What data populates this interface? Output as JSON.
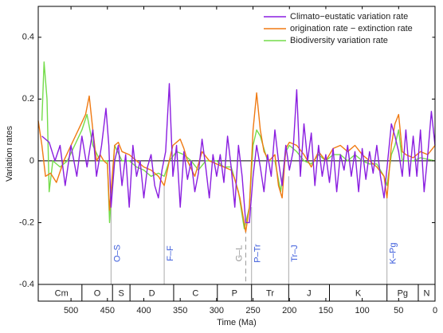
{
  "chart_data": {
    "type": "line",
    "x_label": "Time (Ma)",
    "y_label": "Variation rates",
    "xlim": [
      545,
      0
    ],
    "ylim": [
      -0.4,
      0.5
    ],
    "xticks": [
      500,
      450,
      400,
      350,
      300,
      250,
      200,
      150,
      100,
      50,
      0
    ],
    "yticks": [
      -0.4,
      -0.2,
      0,
      0.2,
      0.4
    ],
    "legend": "upper right",
    "series": [
      {
        "name": "Climato−eustatic variation rate",
        "color": "#8a1ee0",
        "x": [
          540,
          530,
          522,
          515,
          508,
          500,
          492,
          485,
          478,
          470,
          465,
          458,
          452,
          448,
          445,
          440,
          435,
          430,
          425,
          420,
          415,
          410,
          405,
          400,
          395,
          390,
          385,
          380,
          375,
          370,
          365,
          360,
          355,
          350,
          345,
          340,
          335,
          330,
          325,
          320,
          315,
          310,
          305,
          300,
          295,
          290,
          285,
          280,
          275,
          270,
          265,
          260,
          255,
          250,
          245,
          240,
          235,
          230,
          225,
          220,
          215,
          210,
          205,
          200,
          195,
          190,
          185,
          180,
          175,
          170,
          165,
          160,
          155,
          150,
          145,
          140,
          135,
          130,
          125,
          120,
          115,
          110,
          105,
          100,
          95,
          90,
          85,
          80,
          75,
          70,
          65,
          60,
          55,
          50,
          45,
          40,
          35,
          30,
          25,
          20,
          15,
          10,
          5,
          0
        ],
        "values": [
          0.08,
          0.06,
          0.0,
          0.05,
          -0.08,
          0.05,
          -0.05,
          0.08,
          -0.02,
          0.1,
          -0.05,
          0.05,
          0.17,
          0.05,
          -0.15,
          0.0,
          0.05,
          -0.08,
          0.02,
          -0.15,
          0.05,
          -0.05,
          0.0,
          -0.12,
          -0.02,
          0.02,
          -0.08,
          -0.12,
          -0.03,
          0.03,
          0.25,
          -0.05,
          0.05,
          -0.15,
          0.03,
          -0.06,
          0.0,
          -0.1,
          -0.04,
          0.07,
          -0.02,
          -0.12,
          0.02,
          -0.05,
          0.02,
          -0.07,
          0.08,
          -0.02,
          -0.15,
          0.05,
          -0.05,
          -0.2,
          -0.2,
          -0.05,
          0.05,
          -0.02,
          -0.1,
          0.02,
          -0.05,
          0.1,
          0.0,
          -0.08,
          0.05,
          -0.03,
          0.03,
          0.23,
          -0.05,
          0.12,
          0.0,
          0.09,
          -0.08,
          0.05,
          -0.05,
          0.02,
          -0.07,
          0.04,
          -0.1,
          0.02,
          -0.03,
          0.05,
          -0.05,
          0.03,
          -0.1,
          0.04,
          -0.06,
          0.03,
          -0.04,
          0.05,
          -0.05,
          -0.12,
          0.0,
          0.12,
          0.08,
          0.03,
          -0.05,
          0.1,
          -0.05,
          0.08,
          -0.05,
          0.1,
          -0.1,
          0.02,
          0.16,
          0.05
        ]
      },
      {
        "name": "origination rate − extinction rate",
        "color": "#f07a12",
        "x": [
          545,
          540,
          535,
          528,
          520,
          510,
          500,
          490,
          480,
          475,
          470,
          465,
          460,
          455,
          450,
          447,
          440,
          435,
          430,
          420,
          410,
          400,
          390,
          380,
          372,
          365,
          360,
          350,
          345,
          340,
          330,
          320,
          310,
          300,
          290,
          280,
          275,
          268,
          260,
          255,
          250,
          245,
          240,
          235,
          228,
          220,
          215,
          210,
          205,
          200,
          190,
          180,
          170,
          160,
          150,
          140,
          130,
          120,
          110,
          100,
          90,
          80,
          70,
          66,
          60,
          55,
          50,
          45,
          40,
          30,
          20,
          10,
          0
        ],
        "values": [
          0.13,
          0.05,
          -0.05,
          -0.04,
          -0.07,
          0.0,
          0.05,
          0.1,
          0.15,
          0.21,
          0.1,
          0.0,
          0.02,
          0.0,
          -0.01,
          -0.16,
          0.05,
          0.06,
          0.03,
          0.02,
          0.0,
          -0.02,
          -0.03,
          -0.05,
          -0.08,
          0.0,
          0.05,
          0.07,
          0.04,
          0.0,
          -0.05,
          0.03,
          0.0,
          -0.01,
          -0.02,
          -0.03,
          -0.06,
          -0.12,
          -0.23,
          -0.15,
          0.1,
          0.22,
          0.1,
          0.03,
          0.0,
          0.02,
          -0.08,
          -0.12,
          0.04,
          0.06,
          0.05,
          0.02,
          -0.02,
          0.03,
          0.0,
          0.04,
          0.05,
          0.03,
          0.05,
          0.02,
          0.0,
          -0.02,
          -0.05,
          -0.12,
          0.05,
          0.12,
          0.15,
          0.03,
          0.02,
          0.01,
          0.03,
          0.02,
          0.05
        ]
      },
      {
        "name": "Biodiversity variation rate",
        "color": "#74dc4a",
        "x": [
          540,
          537,
          533,
          530,
          525,
          515,
          505,
          495,
          485,
          478,
          470,
          460,
          450,
          447,
          440,
          430,
          420,
          410,
          400,
          390,
          380,
          372,
          365,
          355,
          345,
          335,
          325,
          315,
          300,
          290,
          280,
          270,
          262,
          255,
          250,
          245,
          240,
          230,
          220,
          212,
          205,
          200,
          190,
          180,
          170,
          160,
          150,
          140,
          130,
          120,
          110,
          100,
          90,
          80,
          70,
          66,
          60,
          55,
          50,
          45,
          30,
          20,
          0
        ],
        "values": [
          0.13,
          0.32,
          0.2,
          -0.1,
          0.0,
          -0.02,
          0.0,
          0.05,
          0.1,
          0.15,
          0.05,
          0.0,
          0.0,
          -0.2,
          0.05,
          0.0,
          0.0,
          -0.02,
          -0.03,
          -0.05,
          -0.04,
          -0.05,
          0.0,
          0.03,
          0.02,
          0.0,
          -0.03,
          0.0,
          0.0,
          -0.02,
          -0.02,
          -0.1,
          -0.22,
          -0.15,
          0.05,
          0.1,
          0.08,
          0.0,
          0.0,
          -0.1,
          0.03,
          0.05,
          0.03,
          0.0,
          -0.01,
          0.02,
          0.0,
          0.02,
          0.02,
          0.0,
          0.02,
          0.0,
          -0.01,
          -0.01,
          -0.05,
          -0.08,
          0.02,
          0.05,
          0.1,
          0.0,
          0.0,
          0.01,
          0.0
        ]
      }
    ],
    "periods": [
      {
        "label": "Cm",
        "start": 541,
        "end": 485
      },
      {
        "label": "O",
        "start": 485,
        "end": 443
      },
      {
        "label": "S",
        "start": 443,
        "end": 419
      },
      {
        "label": "D",
        "start": 419,
        "end": 359
      },
      {
        "label": "C",
        "start": 359,
        "end": 299
      },
      {
        "label": "P",
        "start": 299,
        "end": 252
      },
      {
        "label": "Tr",
        "start": 252,
        "end": 201
      },
      {
        "label": "J",
        "start": 201,
        "end": 145
      },
      {
        "label": "K",
        "start": 145,
        "end": 66
      },
      {
        "label": "Pg",
        "start": 66,
        "end": 23
      },
      {
        "label": "N",
        "start": 23,
        "end": 0
      }
    ],
    "events": [
      {
        "label": "O–S",
        "x": 445,
        "value": -0.15,
        "color": "#3b5bdb"
      },
      {
        "label": "F–F",
        "x": 372,
        "value": -0.08,
        "color": "#3b5bdb"
      },
      {
        "label": "G–L",
        "x": 260,
        "value": -0.22,
        "color": "#999999",
        "dashed": true
      },
      {
        "label": "P–Tr",
        "x": 252,
        "value": -0.15,
        "color": "#3b5bdb"
      },
      {
        "label": "Tr–J",
        "x": 201,
        "value": -0.05,
        "color": "#3b5bdb"
      },
      {
        "label": "K–Pg",
        "x": 66,
        "value": -0.12,
        "color": "#3b5bdb"
      }
    ]
  }
}
